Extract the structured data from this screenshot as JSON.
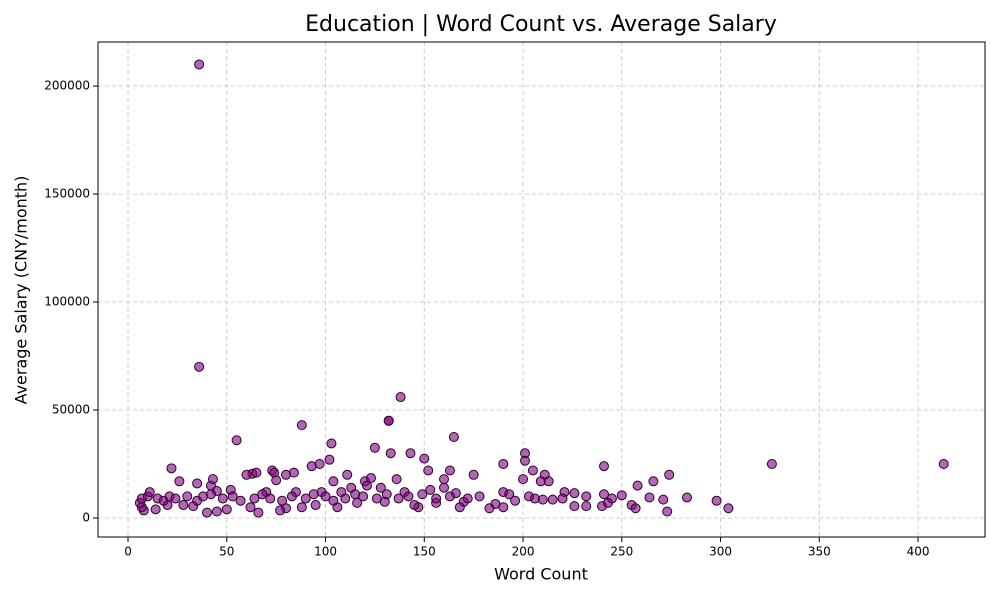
{
  "chart_data": {
    "type": "scatter",
    "title": "Education | Word Count vs. Average Salary",
    "x_label": "Word Count",
    "y_label": "Average Salary (CNY/month)",
    "color": "#800080",
    "edge_color": "#2a002a",
    "grid": true,
    "xlim": [
      -15.2,
      433.9
    ],
    "ylim": [
      -8800,
      220400
    ],
    "xticks": [
      0,
      50,
      100,
      150,
      200,
      250,
      300,
      350,
      400
    ],
    "yticks": [
      0,
      50000,
      100000,
      150000,
      200000
    ],
    "x": [
      36,
      36,
      138,
      132,
      132,
      88,
      55,
      165,
      103,
      125,
      133,
      143,
      201,
      150,
      102,
      201,
      190,
      93,
      97,
      241,
      326,
      413,
      22,
      152,
      163,
      205,
      73,
      74,
      63,
      65,
      84,
      80,
      60,
      111,
      175,
      211,
      274,
      26,
      35,
      42,
      43,
      75,
      104,
      120,
      123,
      136,
      160,
      209,
      213,
      200,
      258,
      266,
      121,
      113,
      128,
      153,
      160,
      45,
      52,
      70,
      85,
      98,
      108,
      140,
      166,
      190,
      221,
      226,
      241,
      250,
      232,
      264,
      283,
      298,
      304,
      273,
      271,
      255,
      257,
      245,
      226,
      232,
      240,
      243,
      206,
      215,
      196,
      186,
      190,
      183,
      170,
      168,
      156,
      147,
      145,
      130,
      116,
      106,
      95,
      88,
      80,
      77,
      66,
      62,
      50,
      45,
      40,
      33,
      28,
      20,
      14,
      8,
      7,
      6,
      7,
      10,
      11,
      15,
      18,
      21,
      24,
      30,
      35,
      38,
      42,
      48,
      53,
      57,
      64,
      68,
      72,
      78,
      83,
      90,
      94,
      100,
      104,
      110,
      115,
      119,
      126,
      131,
      137,
      142,
      149,
      156,
      163,
      172,
      178,
      193,
      203,
      210,
      220
    ],
    "values": [
      210000,
      70000,
      56000,
      45000,
      45000,
      43000,
      36000,
      37500,
      34500,
      32500,
      30000,
      30000,
      30000,
      27500,
      27000,
      26500,
      25000,
      24000,
      25000,
      24000,
      25000,
      25000,
      23000,
      22000,
      22000,
      22000,
      22000,
      21000,
      20500,
      21000,
      21000,
      20000,
      20000,
      20000,
      20000,
      20000,
      20000,
      17000,
      16000,
      15000,
      18000,
      17500,
      17000,
      17000,
      18500,
      18000,
      18000,
      17000,
      17000,
      18000,
      15000,
      17000,
      15000,
      14000,
      14000,
      13000,
      14000,
      12500,
      13000,
      12000,
      12000,
      12000,
      12000,
      12000,
      11500,
      12000,
      12000,
      11500,
      11000,
      10500,
      10000,
      9500,
      9500,
      8000,
      4500,
      3000,
      8500,
      6000,
      4500,
      9000,
      5500,
      5500,
      5500,
      7000,
      9000,
      8500,
      8000,
      6500,
      5000,
      4500,
      7500,
      5000,
      7000,
      5000,
      6000,
      7500,
      7000,
      5000,
      6000,
      5000,
      4500,
      3500,
      2500,
      5000,
      4000,
      3000,
      2500,
      5500,
      6000,
      6000,
      4000,
      3500,
      5000,
      7000,
      9000,
      10000,
      12000,
      9000,
      8000,
      10000,
      9000,
      10000,
      8000,
      10000,
      11000,
      9000,
      10000,
      8000,
      9000,
      11000,
      9000,
      8000,
      10000,
      9000,
      11000,
      10000,
      8000,
      9000,
      11000,
      10000,
      9000,
      11000,
      9000,
      10000,
      11000,
      9000,
      10000,
      9000,
      10000,
      11000,
      10000,
      8500,
      9000
    ]
  }
}
